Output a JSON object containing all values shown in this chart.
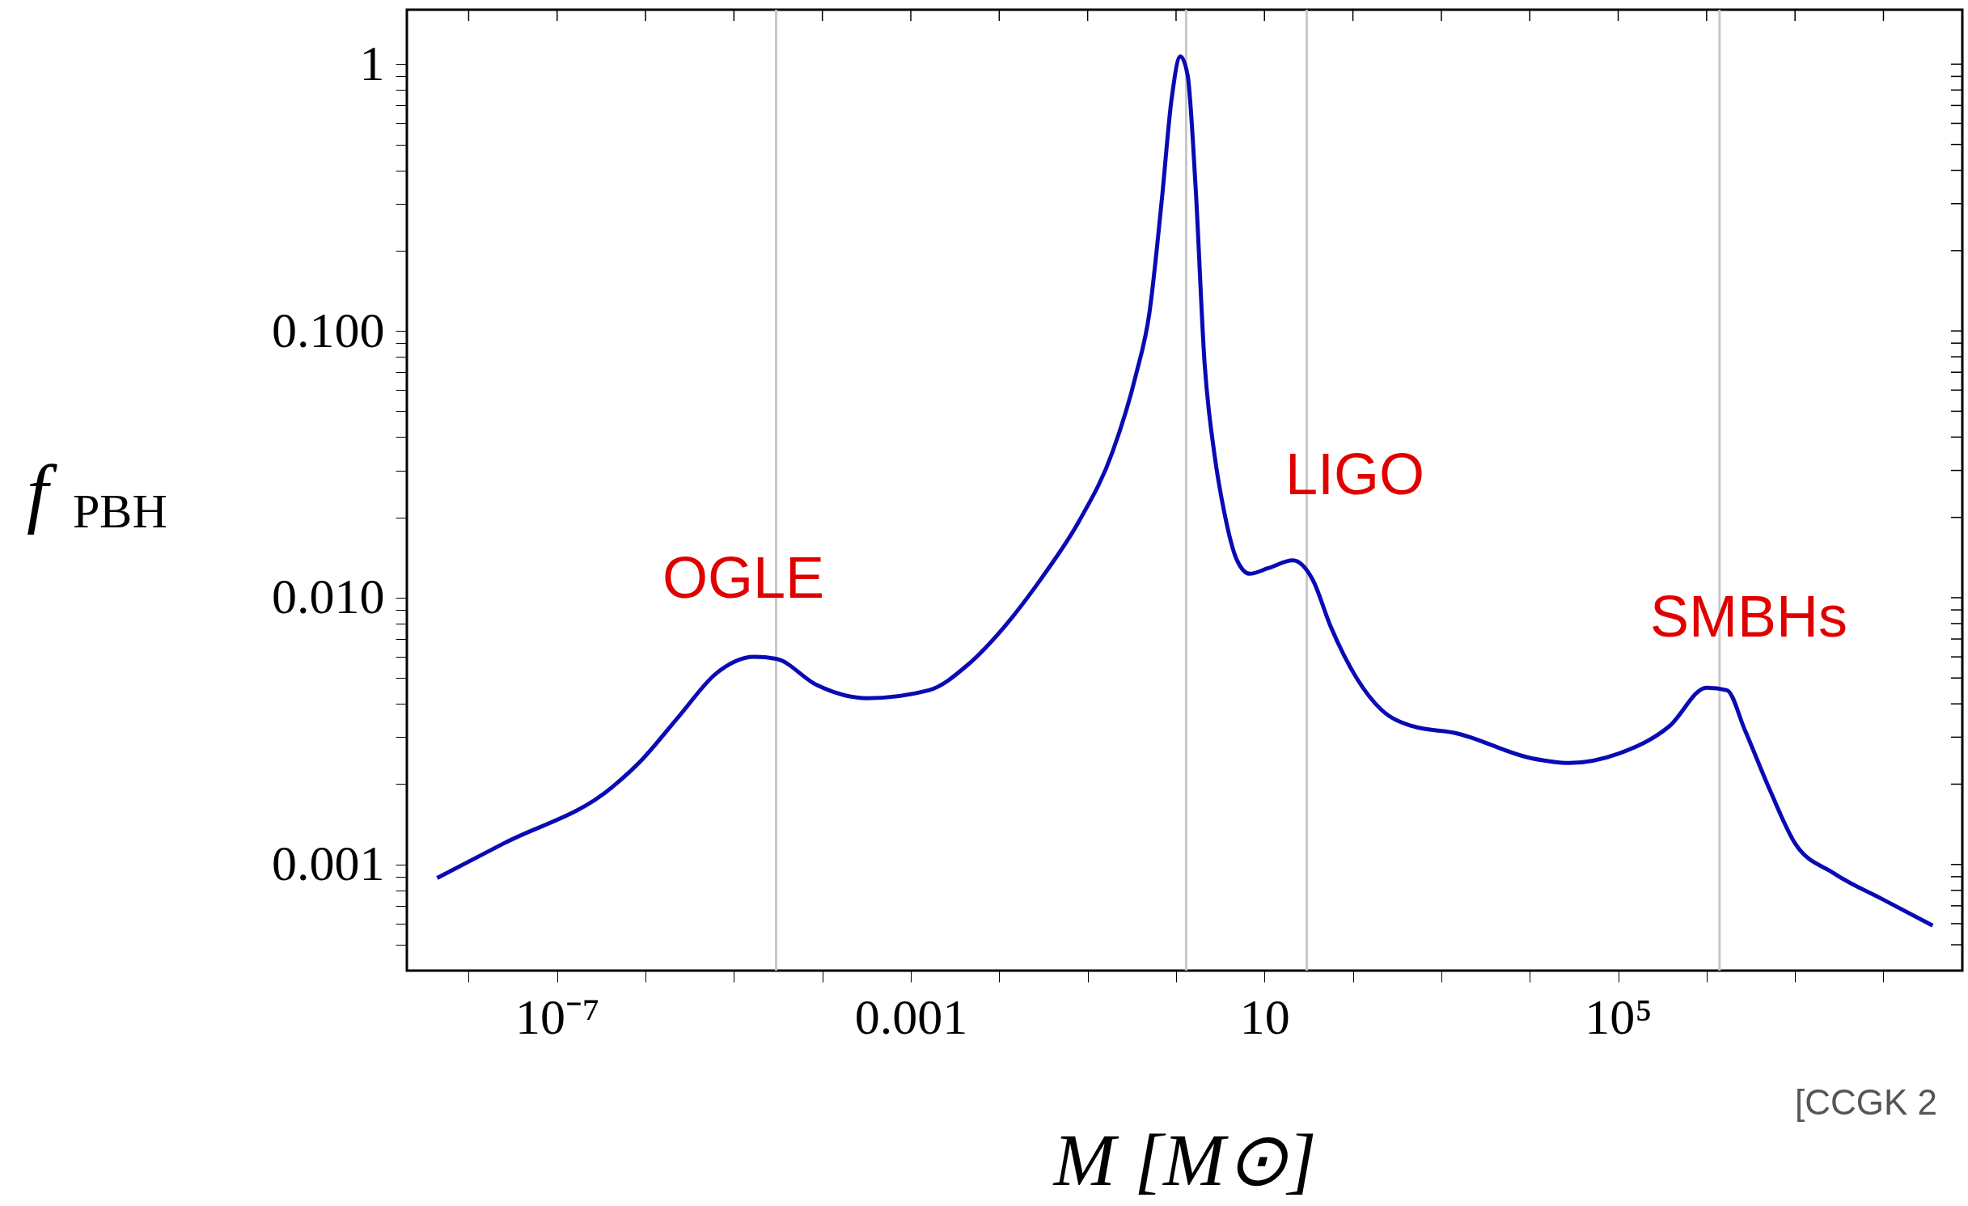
{
  "chart_data": {
    "type": "line",
    "xlabel": "M [M⊙]",
    "ylabel": "f$_{PBH}$",
    "log": "xy",
    "grid": false,
    "xlim": [
      2e-09,
      780000000.0
    ],
    "ylim": [
      0.0004,
      1.6
    ],
    "xticks": [
      {
        "value": 1e-08,
        "label": null
      },
      {
        "value": 1e-07,
        "label": "10⁻⁷"
      },
      {
        "value": 1e-06,
        "label": null
      },
      {
        "value": 1e-05,
        "label": null
      },
      {
        "value": 0.0001,
        "label": null
      },
      {
        "value": 0.001,
        "label": "0.001"
      },
      {
        "value": 0.01,
        "label": null
      },
      {
        "value": 0.1,
        "label": null
      },
      {
        "value": 1,
        "label": null
      },
      {
        "value": 10,
        "label": "10"
      },
      {
        "value": 100,
        "label": null
      },
      {
        "value": 1000,
        "label": null
      },
      {
        "value": 10000,
        "label": null
      },
      {
        "value": 100000,
        "label": "10⁵"
      },
      {
        "value": 1000000,
        "label": null
      },
      {
        "value": 10000000,
        "label": null
      },
      {
        "value": 100000000,
        "label": null
      }
    ],
    "yticks": [
      {
        "value": 0.0005,
        "label": null
      },
      {
        "value": 0.0006,
        "label": null
      },
      {
        "value": 0.0007,
        "label": null
      },
      {
        "value": 0.0008,
        "label": null
      },
      {
        "value": 0.0009,
        "label": null
      },
      0.001,
      {
        "value": 0.002,
        "label": null
      },
      {
        "value": 0.003,
        "label": null
      },
      {
        "value": 0.004,
        "label": null
      },
      {
        "value": 0.005,
        "label": null
      },
      {
        "value": 0.006,
        "label": null
      },
      {
        "value": 0.007,
        "label": null
      },
      {
        "value": 0.008,
        "label": null
      },
      {
        "value": 0.009,
        "label": null
      },
      {
        "value": 0.01,
        "label": "0.010"
      },
      {
        "value": 0.02,
        "label": null
      },
      {
        "value": 0.03,
        "label": null
      },
      {
        "value": 0.04,
        "label": null
      },
      {
        "value": 0.05,
        "label": null
      },
      {
        "value": 0.06,
        "label": null
      },
      {
        "value": 0.07,
        "label": null
      },
      {
        "value": 0.08,
        "label": null
      },
      {
        "value": 0.09,
        "label": null
      },
      {
        "value": 0.1,
        "label": "0.100"
      },
      {
        "value": 0.2,
        "label": null
      },
      {
        "value": 0.3,
        "label": null
      },
      {
        "value": 0.4,
        "label": null
      },
      {
        "value": 0.5,
        "label": null
      },
      {
        "value": 0.6,
        "label": null
      },
      {
        "value": 0.7,
        "label": null
      },
      {
        "value": 0.8,
        "label": null
      },
      {
        "value": 0.9,
        "label": null
      },
      {
        "value": 1,
        "label": "1"
      }
    ],
    "ref_lines": [
      {
        "axis": "x",
        "value": 3e-05,
        "color": "#c8c8c8"
      },
      {
        "axis": "x",
        "value": 1.3,
        "color": "#c8c8c8"
      },
      {
        "axis": "x",
        "value": 30,
        "color": "#c8c8c8"
      },
      {
        "axis": "x",
        "value": 1400000,
        "color": "#c8c8c8"
      }
    ],
    "annotations": [
      "OGLE",
      "LIGO",
      "SMBHs",
      "[CCGK 2"
    ],
    "series": [
      {
        "color": "#0a0ab4",
        "x": [
          4.4e-09,
          2.5e-08,
          4.2e-07,
          8.9e-07,
          2.4e-06,
          6.3e-06,
          1.7e-05,
          3e-05,
          8.7e-05,
          0.00032,
          0.0016,
          0.0044,
          0.0115,
          0.031,
          0.081,
          0.19,
          0.35,
          0.5,
          0.69,
          0.89,
          1.12,
          1.35,
          1.66,
          2.1,
          2.7,
          3.5,
          4.9,
          6.8,
          11,
          21,
          35,
          56,
          110,
          210,
          470,
          1500,
          10500,
          28000,
          100000,
          380000,
          1000000,
          1700000,
          2700000,
          5200000,
          10000000,
          27000000,
          98000000,
          360000000
        ],
        "values": [
          0.00089,
          0.0012,
          0.00195,
          0.00245,
          0.0036,
          0.0052,
          0.006,
          0.0059,
          0.0047,
          0.0042,
          0.0045,
          0.0056,
          0.0078,
          0.012,
          0.0195,
          0.035,
          0.068,
          0.117,
          0.31,
          0.74,
          1.07,
          0.91,
          0.35,
          0.076,
          0.035,
          0.021,
          0.0138,
          0.0123,
          0.0129,
          0.0138,
          0.0117,
          0.0078,
          0.005,
          0.0038,
          0.0033,
          0.0031,
          0.0025,
          0.0024,
          0.0026,
          0.0033,
          0.0046,
          0.0045,
          0.0032,
          0.0019,
          0.0012,
          0.00093,
          0.00074,
          0.00059
        ]
      }
    ]
  }
}
